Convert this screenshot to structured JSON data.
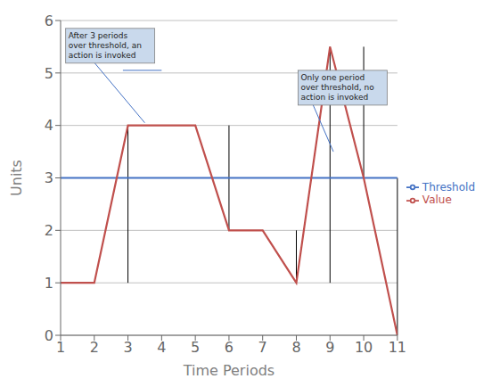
{
  "chart_data": {
    "type": "line",
    "x_label": "Time Periods",
    "y_label": "Units",
    "xlim": [
      1,
      11
    ],
    "xticks": [
      1,
      2,
      3,
      4,
      5,
      6,
      7,
      8,
      9,
      10,
      11
    ],
    "ylim": [
      0,
      6
    ],
    "yticks": [
      0,
      1,
      2,
      3,
      4,
      5,
      6
    ],
    "grid": "y",
    "legend": "right",
    "series": [
      {
        "name": "Threshold",
        "color": "#4472C4",
        "x": [
          1,
          11
        ],
        "values": [
          3,
          3
        ]
      },
      {
        "name": "Value",
        "color": "#C0504D",
        "x": [
          1,
          2,
          3,
          4,
          5,
          6,
          7,
          8,
          9,
          10,
          11
        ],
        "values": [
          1,
          1,
          4,
          4,
          4,
          2,
          2,
          1,
          5.5,
          3,
          0
        ]
      }
    ],
    "vlines": {
      "color": "black",
      "segments": [
        [
          2,
          1,
          1
        ],
        [
          3,
          1,
          4
        ],
        [
          4,
          4,
          4
        ],
        [
          5,
          4,
          4
        ],
        [
          6,
          4,
          2
        ],
        [
          7,
          2,
          2
        ],
        [
          8,
          2,
          1
        ],
        [
          9,
          1,
          5.5
        ],
        [
          10,
          5.5,
          3
        ],
        [
          11,
          3,
          0
        ]
      ]
    },
    "annotations": [
      {
        "text": "After 3 periods\nover threshold, an\naction is invoked",
        "x": 1.15,
        "y": 5.85,
        "color": "#C9D9EC",
        "arrow_color": "#4472C4",
        "arrows": [
          {
            "from_x": 1.15,
            "from_y": 5.85,
            "x": 3.5,
            "y": 4.05
          },
          {
            "from_x": 2.85,
            "from_y": 5.05,
            "x": 4.0,
            "y": 5.05
          }
        ]
      },
      {
        "text": "Only one period\nover threshold, no\naction is invoked",
        "x": 8.05,
        "y": 5.05,
        "color": "#C9D9EC",
        "arrow_color": "#4472C4",
        "arrows": [
          {
            "from_x": 8.05,
            "from_y": 5.05,
            "x": 9.1,
            "y": 3.5
          }
        ]
      }
    ]
  }
}
